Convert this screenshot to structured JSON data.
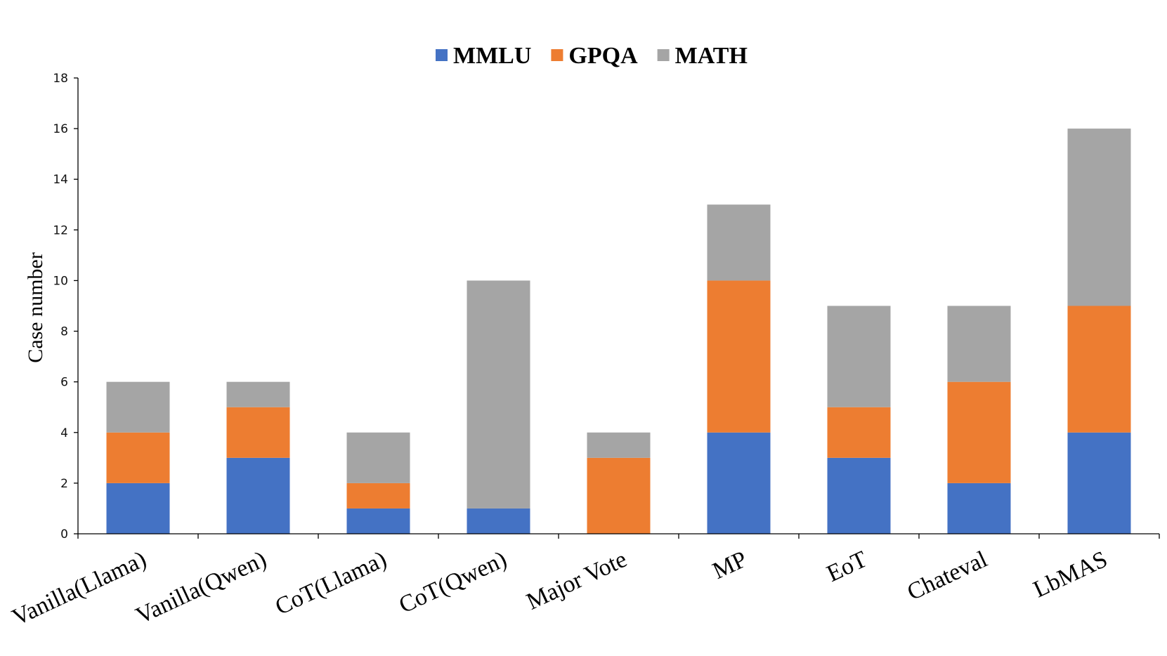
{
  "chart_data": {
    "type": "bar",
    "stacked": true,
    "title": "",
    "xlabel": "",
    "ylabel": "Case number",
    "ylim": [
      0,
      18
    ],
    "yticks": [
      0,
      2,
      4,
      6,
      8,
      10,
      12,
      14,
      16,
      18
    ],
    "ytick_labels": [
      "0",
      "2",
      "4",
      "6",
      "8",
      "10",
      "12",
      "14",
      "16",
      "18"
    ],
    "grid": false,
    "legend_position": "top-center",
    "categories": [
      "Vanilla(Llama)",
      "Vanilla(Qwen)",
      "CoT(Llama)",
      "CoT(Qwen)",
      "Major Vote",
      "MP",
      "EoT",
      "Chateval",
      "LbMAS"
    ],
    "series": [
      {
        "name": "MMLU",
        "color": "#4472C4",
        "values": [
          2,
          3,
          1,
          1,
          0,
          4,
          3,
          2,
          4
        ]
      },
      {
        "name": "GPQA",
        "color": "#ED7D31",
        "values": [
          2,
          2,
          1,
          0,
          3,
          6,
          2,
          4,
          5
        ]
      },
      {
        "name": "MATH",
        "color": "#A5A5A5",
        "values": [
          2,
          1,
          2,
          9,
          1,
          3,
          4,
          3,
          7
        ]
      }
    ]
  }
}
